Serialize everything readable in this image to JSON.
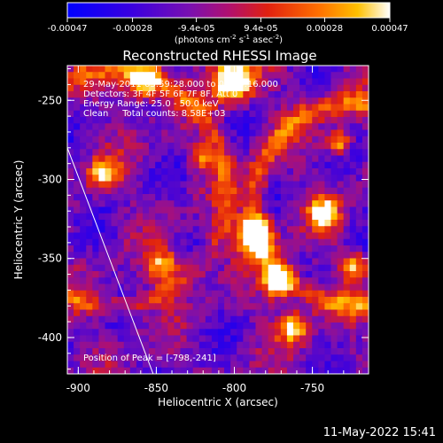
{
  "chart_data": {
    "type": "heatmap",
    "title": "Reconstructed RHESSI Image",
    "xlabel": "Heliocentric X (arcsec)",
    "ylabel": "Heliocentric Y (arcsec)",
    "xlim": [
      -907,
      -714
    ],
    "ylim": [
      -423,
      -228
    ],
    "xticks": [
      -900,
      -850,
      -800,
      -750
    ],
    "xtick_labels": [
      "-900",
      "-850",
      "-800",
      "-750"
    ],
    "yticks": [
      -250,
      -300,
      -350,
      -400
    ],
    "ytick_labels": [
      "-250",
      "-300",
      "-350",
      "-400"
    ],
    "colorbar": {
      "min": -0.00047,
      "max": 0.00047,
      "ticks": [
        -0.00047,
        -0.00028,
        -9.4e-05,
        9.4e-05,
        0.00028,
        0.00047
      ],
      "tick_labels": [
        "-0.00047",
        "-0.00028",
        "-9.4e-05",
        "9.4e-05",
        "0.00028",
        "0.00047"
      ],
      "unit_label": "(photons cm",
      "unit_sup1": "-2",
      "unit_mid": " s",
      "unit_sup2": "-1",
      "unit_mid2": " asec",
      "unit_sup3": "-2",
      "unit_end": ")"
    },
    "annotations": [
      "29-May-2011 03:59:28.000 to 04:03:16.000",
      "Detectors: 3F 4F 5F 6F 7F 8F, Att 0",
      "Energy Range: 25.0 - 50.0 keV",
      "Clean     Total counts: 8.58E+03"
    ],
    "peak_label": "Position of Peak = [-798,-241]",
    "peak_position": [
      -798,
      -241
    ],
    "limb_line": [
      [
        -907,
        -280
      ],
      [
        -852,
        -423
      ]
    ],
    "grid": false
  },
  "footer": {
    "timestamp": "11-May-2022 15:41"
  }
}
